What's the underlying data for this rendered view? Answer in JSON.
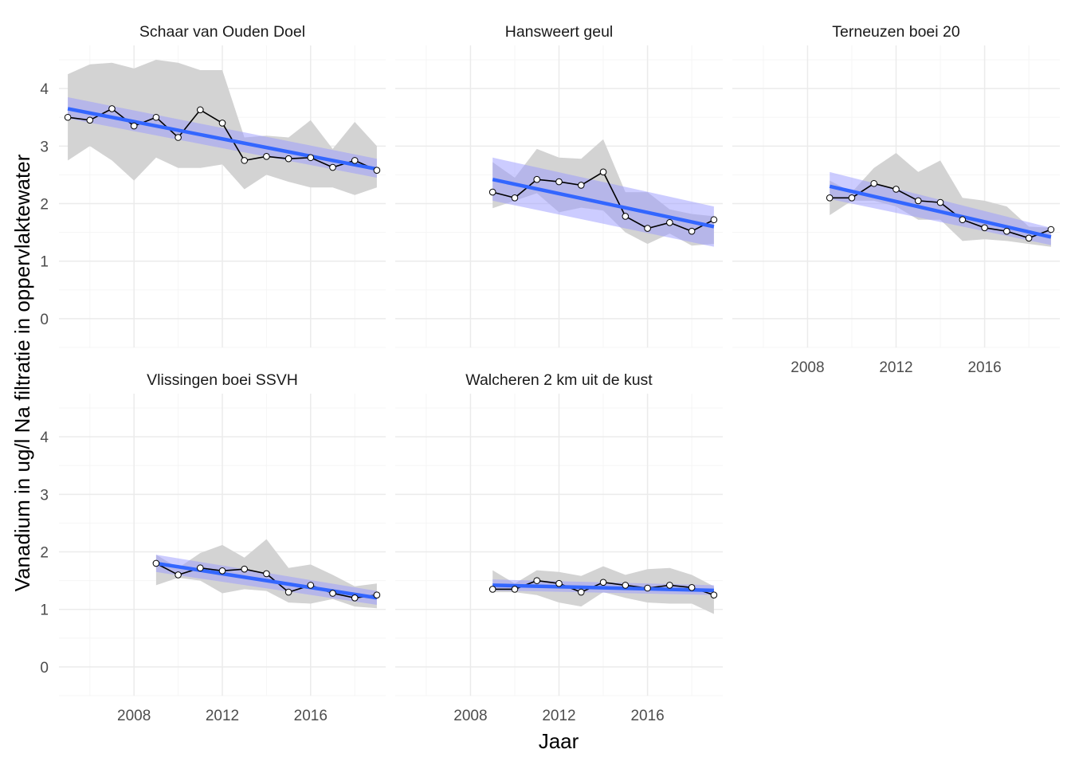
{
  "chart_data": {
    "type": "line",
    "xlabel": "Jaar",
    "ylabel": "Vanadium in ug/l Na filtratie in oppervlaktewater",
    "xlim": [
      2004.6,
      2019.4
    ],
    "ylim": [
      -0.5,
      4.75
    ],
    "x_ticks": [
      2008,
      2012,
      2016
    ],
    "y_ticks": [
      0,
      1,
      2,
      3,
      4
    ],
    "grid": true,
    "colors": {
      "line": "#000000",
      "point_fill": "#ffffff",
      "ribbon": "#d3d3d3",
      "trend": "#3366ff",
      "trend_band": "#9999ff",
      "grid_major": "#ebebeb",
      "grid_minor": "#f5f5f5"
    },
    "panels": [
      {
        "title": "Schaar van Ouden Doel",
        "x": [
          2005,
          2006,
          2007,
          2008,
          2009,
          2010,
          2011,
          2012,
          2013,
          2014,
          2015,
          2016,
          2017,
          2018,
          2019
        ],
        "values": [
          3.5,
          3.45,
          3.65,
          3.35,
          3.5,
          3.15,
          3.63,
          3.4,
          2.75,
          2.82,
          2.78,
          2.8,
          2.63,
          2.75,
          2.58
        ],
        "range_low": [
          2.75,
          3.0,
          2.75,
          2.4,
          2.8,
          2.62,
          2.62,
          2.68,
          2.25,
          2.5,
          2.38,
          2.28,
          2.28,
          2.15,
          2.28
        ],
        "range_high": [
          4.25,
          4.42,
          4.45,
          4.35,
          4.5,
          4.45,
          4.32,
          4.32,
          3.15,
          3.18,
          3.15,
          3.45,
          2.95,
          3.42,
          3.0
        ],
        "trend": [
          3.65,
          2.6
        ],
        "band_start": [
          3.48,
          3.85
        ],
        "band_end": [
          2.45,
          2.78
        ]
      },
      {
        "title": "Hansweert geul",
        "x": [
          2009,
          2010,
          2011,
          2012,
          2013,
          2014,
          2015,
          2016,
          2017,
          2018,
          2019
        ],
        "values": [
          2.2,
          2.1,
          2.42,
          2.38,
          2.32,
          2.55,
          1.78,
          1.57,
          1.67,
          1.52,
          1.72
        ],
        "range_low": [
          1.92,
          2.05,
          2.18,
          1.85,
          1.93,
          1.88,
          1.5,
          1.3,
          1.48,
          1.27,
          1.3
        ],
        "range_high": [
          2.72,
          2.45,
          2.95,
          2.8,
          2.78,
          3.12,
          2.2,
          2.2,
          1.9,
          1.82,
          1.78
        ],
        "trend": [
          2.42,
          1.6
        ],
        "band_start": [
          2.05,
          2.8
        ],
        "band_end": [
          1.25,
          1.95
        ]
      },
      {
        "title": "Terneuzen boei 20",
        "x": [
          2009,
          2010,
          2011,
          2012,
          2013,
          2014,
          2015,
          2016,
          2017,
          2018,
          2019
        ],
        "values": [
          2.1,
          2.1,
          2.35,
          2.25,
          2.05,
          2.02,
          1.72,
          1.58,
          1.52,
          1.4,
          1.55
        ],
        "range_low": [
          1.8,
          2.05,
          2.05,
          1.95,
          1.72,
          1.72,
          1.35,
          1.38,
          1.35,
          1.3,
          1.25
        ],
        "range_high": [
          2.4,
          2.2,
          2.62,
          2.88,
          2.55,
          2.75,
          2.1,
          2.05,
          1.95,
          1.6,
          1.58
        ],
        "trend": [
          2.3,
          1.42
        ],
        "band_start": [
          2.08,
          2.55
        ],
        "band_end": [
          1.28,
          1.58
        ]
      },
      {
        "title": "Vlissingen boei SSVH",
        "x": [
          2009,
          2010,
          2011,
          2012,
          2013,
          2014,
          2015,
          2016,
          2017,
          2018,
          2019
        ],
        "values": [
          1.8,
          1.6,
          1.72,
          1.67,
          1.7,
          1.62,
          1.3,
          1.42,
          1.28,
          1.2,
          1.25
        ],
        "range_low": [
          1.42,
          1.55,
          1.5,
          1.28,
          1.35,
          1.32,
          1.12,
          1.1,
          1.18,
          1.05,
          1.02
        ],
        "range_high": [
          1.95,
          1.72,
          1.98,
          2.12,
          1.9,
          2.22,
          1.72,
          1.78,
          1.6,
          1.4,
          1.45
        ],
        "trend": [
          1.8,
          1.2
        ],
        "band_start": [
          1.65,
          1.95
        ],
        "band_end": [
          1.08,
          1.32
        ]
      },
      {
        "title": "Walcheren 2 km uit de kust",
        "x": [
          2009,
          2010,
          2011,
          2012,
          2013,
          2014,
          2015,
          2016,
          2017,
          2018,
          2019
        ],
        "values": [
          1.35,
          1.35,
          1.5,
          1.45,
          1.3,
          1.47,
          1.42,
          1.37,
          1.42,
          1.38,
          1.25
        ],
        "range_low": [
          1.3,
          1.3,
          1.25,
          1.12,
          1.05,
          1.3,
          1.2,
          1.12,
          1.1,
          1.1,
          0.92
        ],
        "range_high": [
          1.68,
          1.45,
          1.68,
          1.65,
          1.58,
          1.75,
          1.6,
          1.7,
          1.72,
          1.6,
          1.4
        ],
        "trend": [
          1.42,
          1.33
        ],
        "band_start": [
          1.33,
          1.52
        ],
        "band_end": [
          1.25,
          1.42
        ]
      }
    ]
  }
}
